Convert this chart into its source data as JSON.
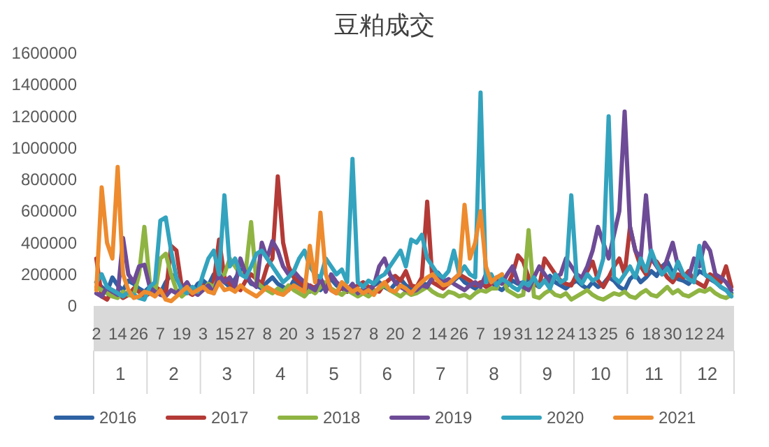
{
  "chart_data": {
    "type": "line",
    "title": "豆粕成交",
    "categories": [
      "2",
      null,
      null,
      null,
      "14",
      null,
      null,
      null,
      "26",
      null,
      null,
      null,
      "7",
      null,
      null,
      null,
      "19",
      null,
      null,
      null,
      "3",
      null,
      null,
      null,
      "15",
      null,
      null,
      null,
      "27",
      null,
      null,
      null,
      "8",
      null,
      null,
      null,
      "20",
      null,
      null,
      null,
      "3",
      null,
      null,
      null,
      "15",
      null,
      null,
      null,
      "27",
      null,
      null,
      null,
      "8",
      null,
      null,
      null,
      "20",
      null,
      null,
      null,
      "2",
      null,
      null,
      null,
      "14",
      null,
      null,
      null,
      "26",
      null,
      null,
      null,
      "7",
      null,
      null,
      null,
      "19",
      null,
      null,
      null,
      "31",
      null,
      null,
      null,
      "12",
      null,
      null,
      null,
      "24",
      null,
      null,
      null,
      "13",
      null,
      null,
      null,
      "25",
      null,
      null,
      null,
      "6",
      null,
      null,
      null,
      "18",
      null,
      null,
      null,
      "30",
      null,
      null,
      null,
      "12",
      null,
      null,
      null,
      "24",
      null,
      null,
      null
    ],
    "annotations": [
      "1",
      "2",
      "3",
      "4",
      "5",
      "6",
      "7",
      "8",
      "9",
      "10",
      "11",
      "12"
    ],
    "ylim": [
      0,
      1600000
    ],
    "yticks": [
      0,
      200000,
      400000,
      600000,
      800000,
      1000000,
      1200000,
      1400000,
      1600000
    ],
    "grid": false,
    "legend": "bottom",
    "marker": "none",
    "line_style": "solid",
    "series": [
      {
        "name": "2016",
        "color": "#2e62a3",
        "values": [
          150000,
          120000,
          90000,
          180000,
          130000,
          100000,
          160000,
          140000,
          110000,
          90000,
          120000,
          100000,
          80000,
          150000,
          200000,
          170000,
          130000,
          110000,
          90000,
          140000,
          160000,
          130000,
          200000,
          180000,
          150000,
          120000,
          170000,
          230000,
          190000,
          140000,
          130000,
          110000,
          150000,
          180000,
          140000,
          120000,
          100000,
          160000,
          130000,
          110000,
          90000,
          120000,
          100000,
          140000,
          170000,
          130000,
          110000,
          90000,
          120000,
          100000,
          80000,
          110000,
          130000,
          150000,
          120000,
          100000,
          140000,
          170000,
          130000,
          110000,
          120000,
          150000,
          130000,
          180000,
          210000,
          170000,
          140000,
          160000,
          190000,
          150000,
          130000,
          110000,
          140000,
          170000,
          150000,
          120000,
          100000,
          130000,
          160000,
          140000,
          150000,
          170000,
          140000,
          120000,
          160000,
          190000,
          150000,
          130000,
          110000,
          140000,
          160000,
          130000,
          110000,
          150000,
          120000,
          140000,
          180000,
          160000,
          120000,
          100000,
          170000,
          200000,
          150000,
          180000,
          220000,
          190000,
          250000,
          280000,
          210000,
          170000,
          160000,
          140000,
          180000,
          220000,
          200000,
          170000,
          150000,
          120000,
          100000,
          80000
        ]
      },
      {
        "name": "2017",
        "color": "#b33a36",
        "values": [
          300000,
          60000,
          40000,
          100000,
          80000,
          50000,
          70000,
          110000,
          90000,
          60000,
          80000,
          120000,
          100000,
          70000,
          380000,
          350000,
          120000,
          90000,
          70000,
          100000,
          130000,
          110000,
          150000,
          420000,
          180000,
          140000,
          120000,
          100000,
          160000,
          200000,
          170000,
          140000,
          250000,
          300000,
          820000,
          400000,
          250000,
          180000,
          150000,
          120000,
          130000,
          110000,
          160000,
          140000,
          100000,
          80000,
          120000,
          90000,
          110000,
          130000,
          150000,
          120000,
          100000,
          90000,
          140000,
          170000,
          190000,
          160000,
          220000,
          130000,
          120000,
          180000,
          660000,
          150000,
          130000,
          110000,
          140000,
          170000,
          200000,
          180000,
          160000,
          130000,
          150000,
          120000,
          140000,
          180000,
          150000,
          130000,
          200000,
          320000,
          280000,
          180000,
          150000,
          120000,
          300000,
          250000,
          200000,
          160000,
          140000,
          130000,
          200000,
          150000,
          220000,
          280000,
          160000,
          120000,
          180000,
          250000,
          300000,
          200000,
          500000,
          350000,
          250000,
          200000,
          300000,
          280000,
          230000,
          180000,
          150000,
          200000,
          180000,
          220000,
          160000,
          140000,
          120000,
          200000,
          180000,
          150000,
          250000,
          120000
        ]
      },
      {
        "name": "2018",
        "color": "#8fb443",
        "values": [
          120000,
          100000,
          80000,
          60000,
          50000,
          90000,
          70000,
          60000,
          200000,
          500000,
          150000,
          80000,
          300000,
          330000,
          200000,
          100000,
          60000,
          90000,
          120000,
          80000,
          100000,
          140000,
          120000,
          180000,
          200000,
          300000,
          250000,
          200000,
          220000,
          530000,
          150000,
          120000,
          100000,
          80000,
          110000,
          90000,
          130000,
          100000,
          80000,
          60000,
          100000,
          80000,
          120000,
          150000,
          110000,
          90000,
          70000,
          100000,
          80000,
          60000,
          80000,
          60000,
          90000,
          110000,
          130000,
          100000,
          80000,
          60000,
          90000,
          70000,
          80000,
          100000,
          120000,
          90000,
          70000,
          60000,
          90000,
          80000,
          60000,
          70000,
          50000,
          80000,
          100000,
          90000,
          110000,
          110000,
          200000,
          100000,
          80000,
          60000,
          70000,
          480000,
          60000,
          50000,
          80000,
          100000,
          70000,
          60000,
          80000,
          40000,
          60000,
          80000,
          100000,
          70000,
          50000,
          40000,
          60000,
          80000,
          70000,
          90000,
          60000,
          50000,
          80000,
          100000,
          70000,
          60000,
          90000,
          120000,
          80000,
          100000,
          70000,
          60000,
          80000,
          100000,
          90000,
          110000,
          80000,
          60000,
          50000,
          70000
        ]
      },
      {
        "name": "2019",
        "color": "#6d4b96",
        "values": [
          80000,
          60000,
          120000,
          90000,
          70000,
          430000,
          200000,
          150000,
          250000,
          260000,
          120000,
          90000,
          70000,
          60000,
          100000,
          80000,
          110000,
          150000,
          90000,
          70000,
          100000,
          130000,
          80000,
          200000,
          150000,
          180000,
          120000,
          300000,
          200000,
          150000,
          120000,
          400000,
          300000,
          410000,
          350000,
          250000,
          200000,
          220000,
          180000,
          150000,
          120000,
          100000,
          180000,
          90000,
          200000,
          150000,
          120000,
          100000,
          140000,
          80000,
          110000,
          90000,
          130000,
          250000,
          300000,
          200000,
          150000,
          120000,
          100000,
          90000,
          100000,
          130000,
          120000,
          180000,
          200000,
          150000,
          170000,
          140000,
          120000,
          100000,
          130000,
          150000,
          120000,
          200000,
          180000,
          160000,
          140000,
          200000,
          250000,
          150000,
          120000,
          100000,
          180000,
          250000,
          200000,
          150000,
          180000,
          200000,
          300000,
          250000,
          200000,
          180000,
          250000,
          350000,
          500000,
          400000,
          300000,
          450000,
          600000,
          1230000,
          500000,
          350000,
          300000,
          700000,
          300000,
          250000,
          200000,
          300000,
          400000,
          250000,
          200000,
          180000,
          300000,
          250000,
          400000,
          350000,
          200000,
          180000,
          150000,
          100000
        ]
      },
      {
        "name": "2020",
        "color": "#33a3be",
        "values": [
          150000,
          200000,
          120000,
          100000,
          80000,
          60000,
          90000,
          70000,
          50000,
          40000,
          120000,
          150000,
          540000,
          560000,
          350000,
          180000,
          100000,
          80000,
          120000,
          90000,
          200000,
          300000,
          350000,
          200000,
          700000,
          250000,
          300000,
          200000,
          180000,
          250000,
          330000,
          350000,
          300000,
          250000,
          200000,
          150000,
          180000,
          220000,
          300000,
          350000,
          250000,
          200000,
          180000,
          300000,
          250000,
          200000,
          230000,
          150000,
          930000,
          150000,
          120000,
          160000,
          140000,
          180000,
          200000,
          250000,
          300000,
          350000,
          250000,
          420000,
          400000,
          450000,
          300000,
          250000,
          200000,
          180000,
          220000,
          350000,
          200000,
          250000,
          200000,
          180000,
          1350000,
          150000,
          200000,
          130000,
          170000,
          150000,
          120000,
          100000,
          150000,
          130000,
          180000,
          120000,
          160000,
          110000,
          200000,
          150000,
          170000,
          700000,
          180000,
          140000,
          200000,
          160000,
          180000,
          300000,
          1200000,
          180000,
          150000,
          200000,
          250000,
          180000,
          300000,
          220000,
          350000,
          260000,
          200000,
          240000,
          180000,
          280000,
          200000,
          170000,
          150000,
          380000,
          200000,
          180000,
          150000,
          120000,
          100000,
          60000
        ]
      },
      {
        "name": "2021",
        "color": "#ed8b2e",
        "values": [
          100000,
          750000,
          400000,
          300000,
          880000,
          200000,
          100000,
          50000,
          60000,
          90000,
          80000,
          60000,
          100000,
          40000,
          30000,
          60000,
          90000,
          120000,
          80000,
          100000,
          120000,
          90000,
          80000,
          150000,
          100000,
          110000,
          90000,
          130000,
          100000,
          80000,
          60000,
          90000,
          120000,
          100000,
          80000,
          70000,
          100000,
          130000,
          110000,
          90000,
          380000,
          150000,
          590000,
          200000,
          100000,
          80000,
          150000,
          120000,
          90000,
          110000,
          80000,
          100000,
          70000,
          120000,
          150000,
          100000,
          90000,
          130000,
          110000,
          80000,
          120000,
          150000,
          180000,
          200000,
          160000,
          130000,
          140000,
          170000,
          200000,
          640000,
          300000,
          400000,
          600000,
          250000,
          150000,
          180000,
          200000,
          null,
          null,
          null,
          null,
          null,
          null,
          null,
          null,
          null,
          null,
          null,
          null,
          null,
          null,
          null,
          null,
          null,
          null,
          null,
          null,
          null,
          null,
          null,
          null,
          null,
          null,
          null,
          null,
          null,
          null,
          null,
          null,
          null,
          null,
          null,
          null,
          null,
          null,
          null,
          null,
          null,
          null,
          null
        ]
      }
    ]
  }
}
